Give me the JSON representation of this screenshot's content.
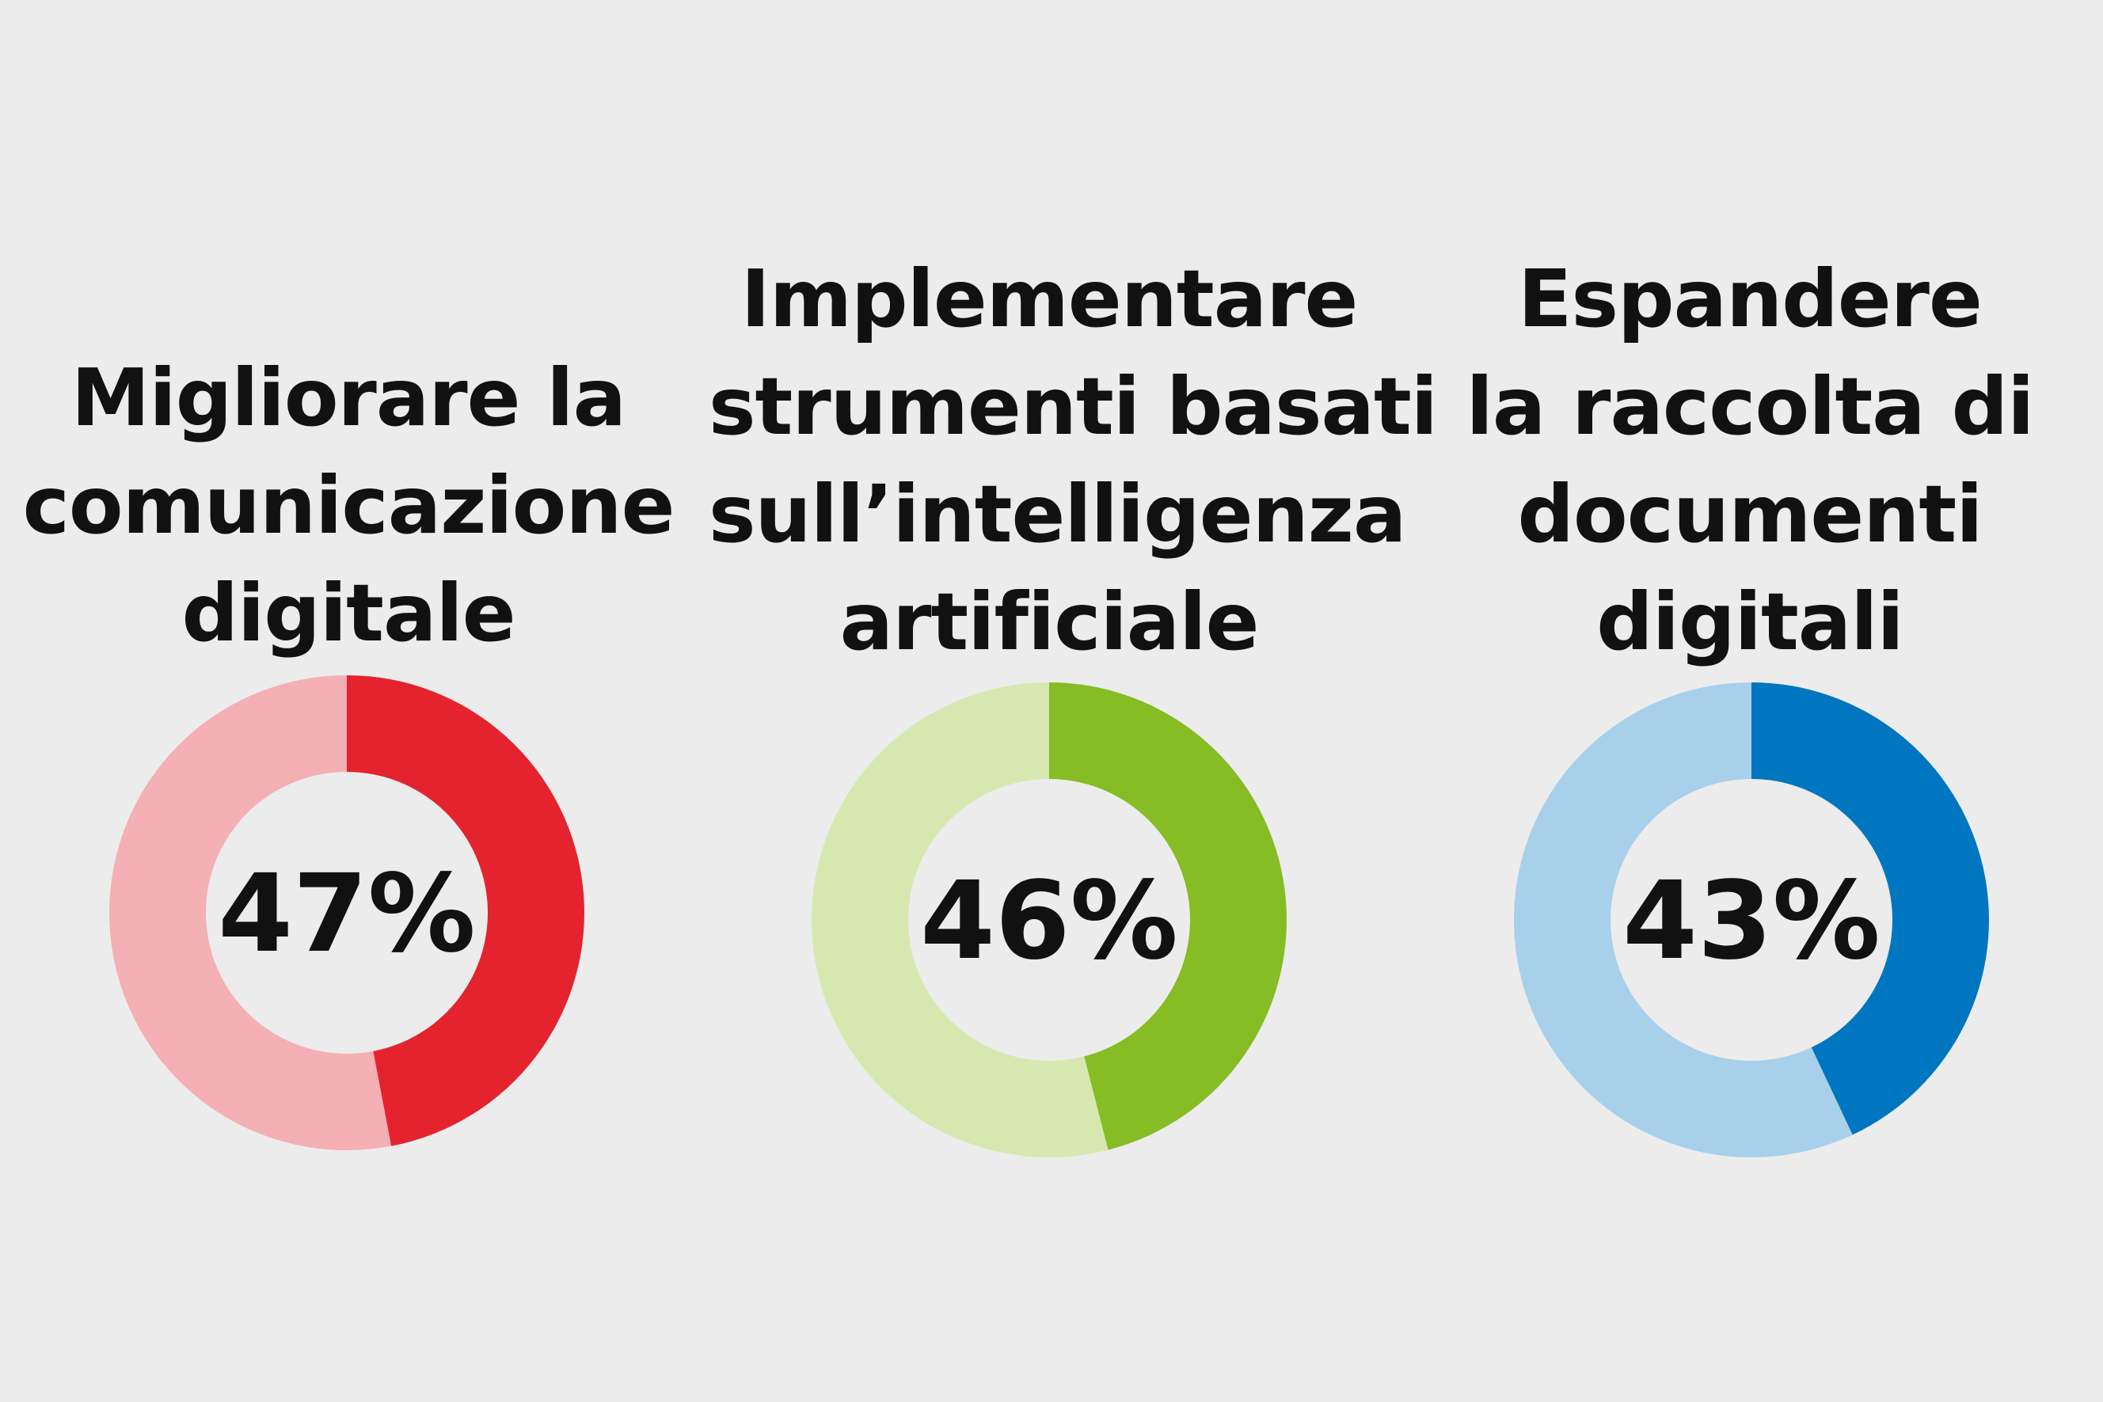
{
  "chart_data": [
    {
      "type": "pie",
      "title": "Migliorare la comunicazione digitale",
      "title_lines": [
        "Migliorare la",
        "comunicazione",
        "digitale"
      ],
      "value": 47,
      "label": "47%",
      "colors": {
        "fill": "#e4232e",
        "track": "#f4b0b4"
      }
    },
    {
      "type": "pie",
      "title": "Implementare strumenti basati sull’intelligenza artificiale",
      "title_lines": [
        "Implementare",
        "strumenti basati",
        "sull’intelligenza",
        "artificiale"
      ],
      "value": 46,
      "label": "46%",
      "colors": {
        "fill": "#86bc24",
        "track": "#d6e8b0"
      }
    },
    {
      "type": "pie",
      "title": "Espandere la raccolta di documenti digitali",
      "title_lines": [
        "Espandere",
        "la raccolta di",
        "documenti",
        "digitali"
      ],
      "value": 43,
      "label": "43%",
      "colors": {
        "fill": "#0076c0",
        "track": "#a8d0ea"
      }
    }
  ]
}
